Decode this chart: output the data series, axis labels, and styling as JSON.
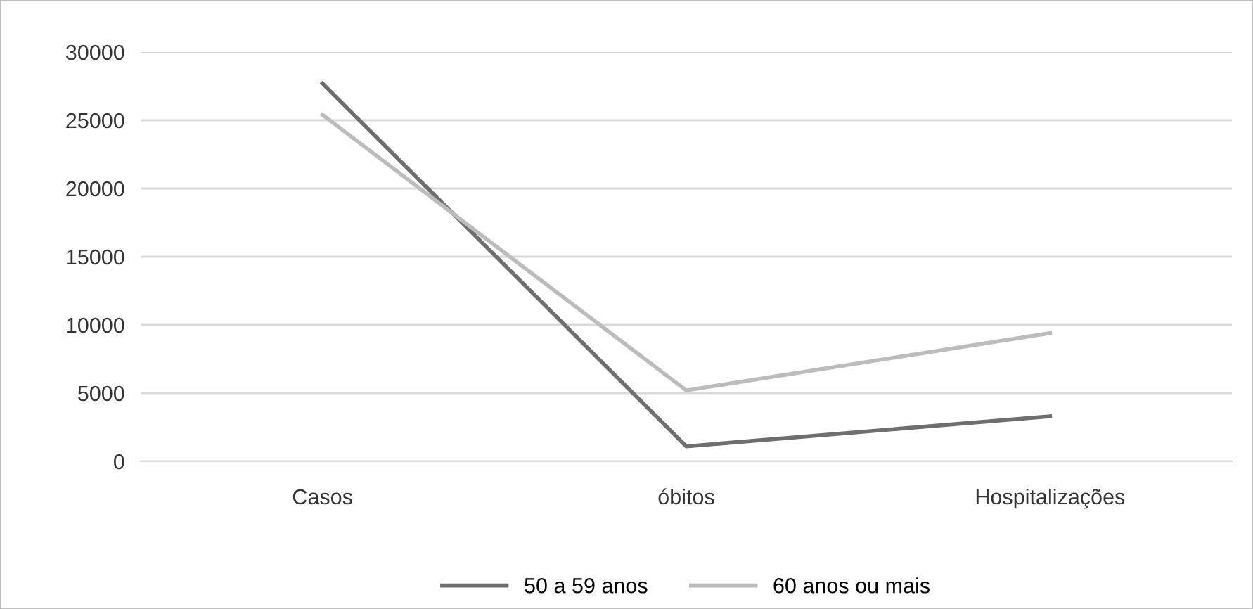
{
  "chart_data": {
    "type": "line",
    "categories": [
      "Casos",
      "óbitos",
      "Hospitalizações"
    ],
    "series": [
      {
        "name": "50 a 59 anos",
        "color": "#6e6e6e",
        "values": [
          27700,
          1100,
          3300
        ]
      },
      {
        "name": "60 anos ou mais",
        "color": "#bcbcbc",
        "values": [
          25400,
          5200,
          9400
        ]
      }
    ],
    "ylim": [
      0,
      30000
    ],
    "yticks": [
      0,
      5000,
      10000,
      15000,
      20000,
      25000,
      30000
    ],
    "grid": "y",
    "legend": "bottom",
    "marker": "none",
    "line_style": "solid"
  }
}
